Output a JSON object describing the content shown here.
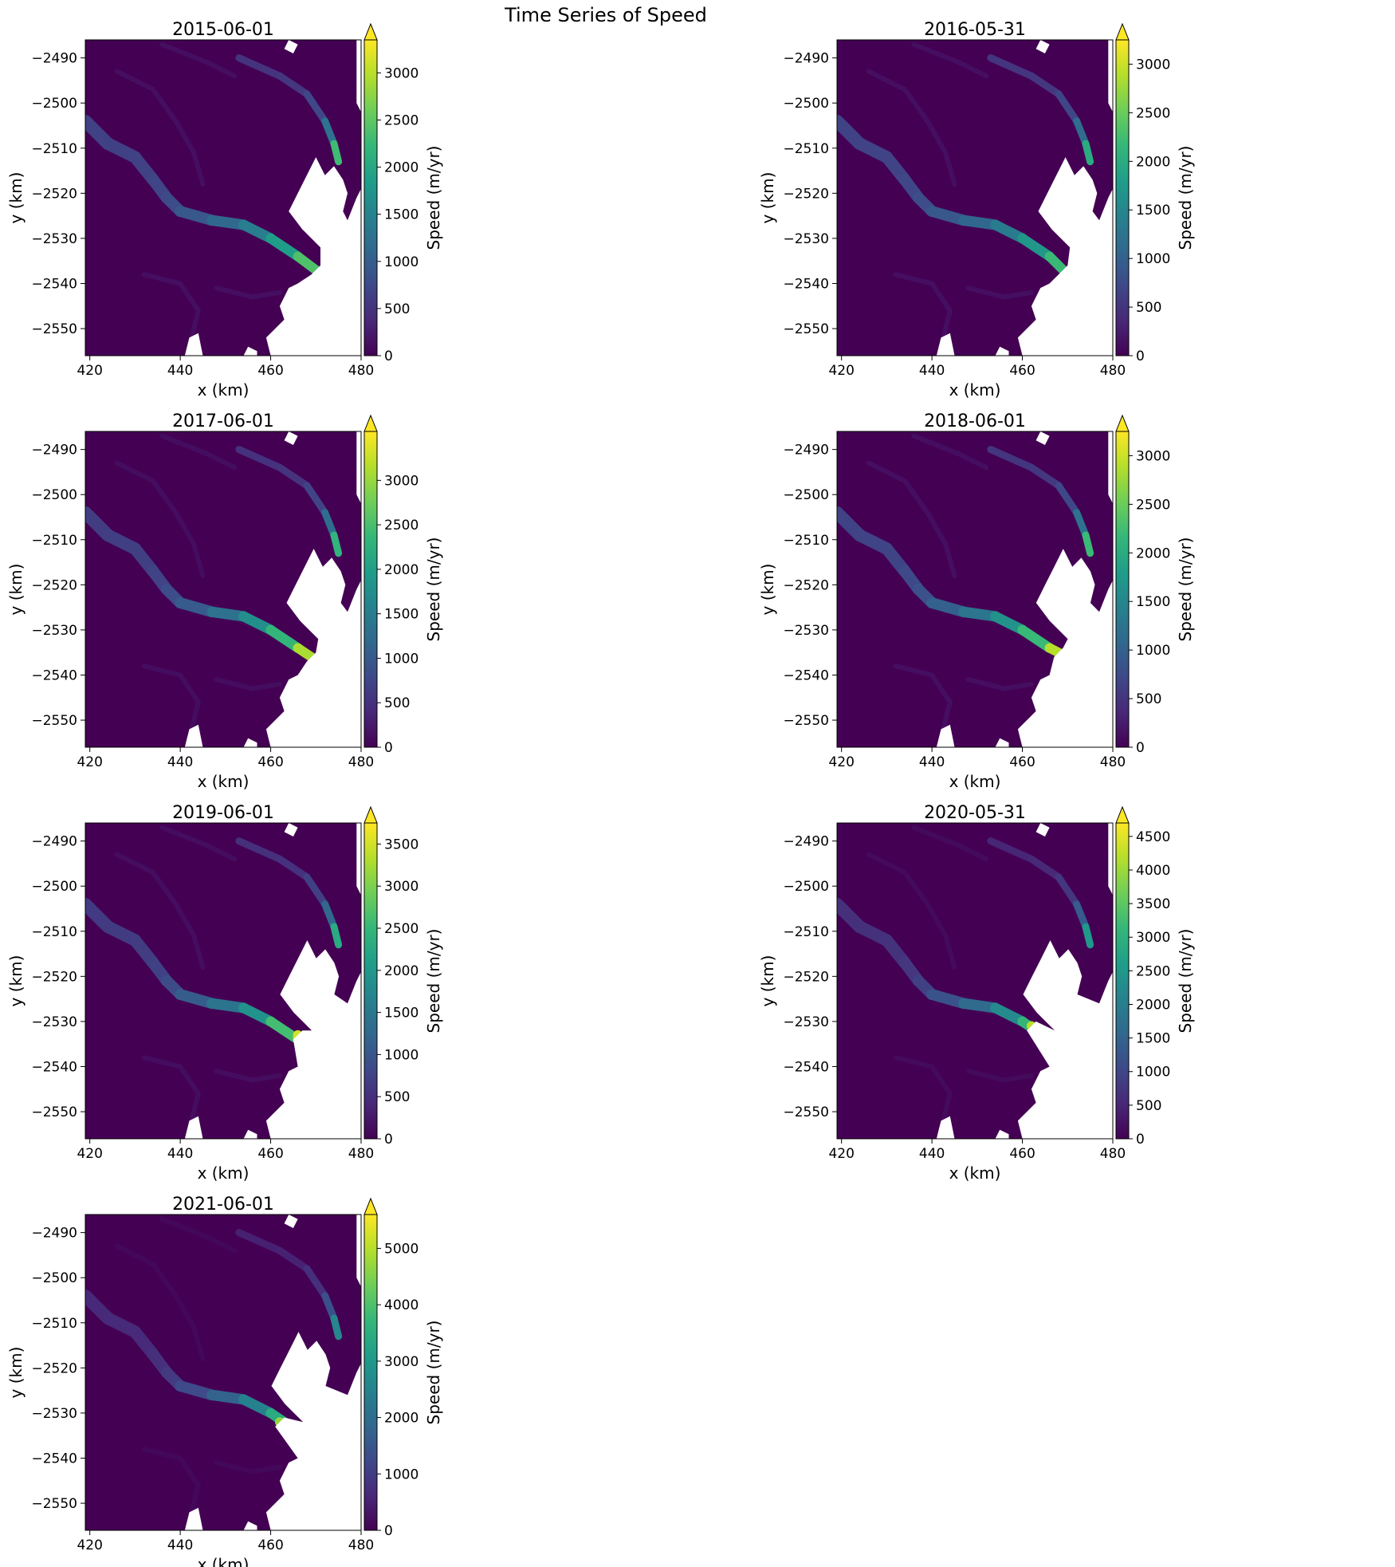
{
  "figure": {
    "title": "Time Series of Speed"
  },
  "colormap": [
    "#440154",
    "#482878",
    "#3e4989",
    "#31688e",
    "#26828e",
    "#1f9e89",
    "#35b779",
    "#6ece58",
    "#b5de2b",
    "#fde725"
  ],
  "chart_data": [
    {
      "type": "heatmap",
      "title": "2015-06-01",
      "xlabel": "x (km)",
      "ylabel": "y (km)",
      "colorbar_label": "Speed (m/yr)",
      "xlim": [
        419,
        480
      ],
      "ylim": [
        -2556,
        -2486
      ],
      "xticks": [
        420,
        440,
        460,
        480
      ],
      "yticks": [
        -2490,
        -2500,
        -2510,
        -2520,
        -2530,
        -2540,
        -2550
      ],
      "clim": [
        0,
        3350
      ],
      "cticks": [
        0,
        500,
        1000,
        1500,
        2000,
        2500,
        3000
      ],
      "front_x": 470,
      "front_y": -2537,
      "peak_speed": 2400,
      "tributary_peak": 2300
    },
    {
      "type": "heatmap",
      "title": "2016-05-31",
      "xlabel": "x (km)",
      "ylabel": "y (km)",
      "colorbar_label": "Speed (m/yr)",
      "xlim": [
        419,
        480
      ],
      "ylim": [
        -2556,
        -2486
      ],
      "xticks": [
        420,
        440,
        460,
        480
      ],
      "yticks": [
        -2490,
        -2500,
        -2510,
        -2520,
        -2530,
        -2540,
        -2550
      ],
      "clim": [
        0,
        3250
      ],
      "cticks": [
        0,
        500,
        1000,
        1500,
        2000,
        2500,
        3000
      ],
      "front_x": 469,
      "front_y": -2537,
      "peak_speed": 2200,
      "tributary_peak": 2000
    },
    {
      "type": "heatmap",
      "title": "2017-06-01",
      "xlabel": "x (km)",
      "ylabel": "y (km)",
      "colorbar_label": "Speed (m/yr)",
      "xlim": [
        419,
        480
      ],
      "ylim": [
        -2556,
        -2486
      ],
      "xticks": [
        420,
        440,
        460,
        480
      ],
      "yticks": [
        -2490,
        -2500,
        -2510,
        -2520,
        -2530,
        -2540,
        -2550
      ],
      "clim": [
        0,
        3550
      ],
      "cticks": [
        0,
        500,
        1000,
        1500,
        2000,
        2500,
        3000
      ],
      "front_x": 469,
      "front_y": -2536,
      "peak_speed": 3100,
      "tributary_peak": 2300
    },
    {
      "type": "heatmap",
      "title": "2018-06-01",
      "xlabel": "x (km)",
      "ylabel": "y (km)",
      "colorbar_label": "Speed (m/yr)",
      "xlim": [
        419,
        480
      ],
      "ylim": [
        -2556,
        -2486
      ],
      "xticks": [
        420,
        440,
        460,
        480
      ],
      "yticks": [
        -2490,
        -2500,
        -2510,
        -2520,
        -2530,
        -2540,
        -2550
      ],
      "clim": [
        0,
        3250
      ],
      "cticks": [
        0,
        500,
        1000,
        1500,
        2000,
        2500,
        3000
      ],
      "front_x": 468,
      "front_y": -2535,
      "peak_speed": 2900,
      "tributary_peak": 2200
    },
    {
      "type": "heatmap",
      "title": "2019-06-01",
      "xlabel": "x (km)",
      "ylabel": "y (km)",
      "colorbar_label": "Speed (m/yr)",
      "xlim": [
        419,
        480
      ],
      "ylim": [
        -2556,
        -2486
      ],
      "xticks": [
        420,
        440,
        460,
        480
      ],
      "yticks": [
        -2490,
        -2500,
        -2510,
        -2520,
        -2530,
        -2540,
        -2550
      ],
      "clim": [
        0,
        3750
      ],
      "cticks": [
        0,
        500,
        1000,
        1500,
        2000,
        2500,
        3000,
        3500
      ],
      "front_x": 466,
      "front_y": -2533,
      "peak_speed": 3500,
      "tributary_peak": 2300
    },
    {
      "type": "heatmap",
      "title": "2020-05-31",
      "xlabel": "x (km)",
      "ylabel": "y (km)",
      "colorbar_label": "Speed (m/yr)",
      "xlim": [
        419,
        480
      ],
      "ylim": [
        -2556,
        -2486
      ],
      "xticks": [
        420,
        440,
        460,
        480
      ],
      "yticks": [
        -2490,
        -2500,
        -2510,
        -2520,
        -2530,
        -2540,
        -2550
      ],
      "clim": [
        0,
        4700
      ],
      "cticks": [
        0,
        500,
        1000,
        1500,
        2000,
        2500,
        3000,
        3500,
        4000,
        4500
      ],
      "front_x": 462,
      "front_y": -2531,
      "peak_speed": 4200,
      "tributary_peak": 2500
    },
    {
      "type": "heatmap",
      "title": "2021-06-01",
      "xlabel": "x (km)",
      "ylabel": "y (km)",
      "colorbar_label": "Speed (m/yr)",
      "xlim": [
        419,
        480
      ],
      "ylim": [
        -2556,
        -2486
      ],
      "xticks": [
        420,
        440,
        460,
        480
      ],
      "yticks": [
        -2490,
        -2500,
        -2510,
        -2520,
        -2530,
        -2540,
        -2550
      ],
      "clim": [
        0,
        5600
      ],
      "cticks": [
        0,
        1000,
        2000,
        3000,
        4000,
        5000
      ],
      "front_x": 462,
      "front_y": -2532,
      "peak_speed": 4700,
      "tributary_peak": 2600
    }
  ]
}
